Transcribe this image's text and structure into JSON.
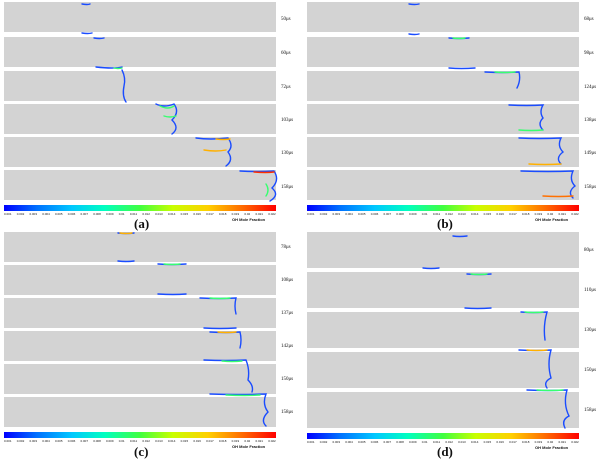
{
  "colorbar": {
    "title": "OH Mole Fraction",
    "ticks": [
      "0.001",
      "0.002",
      "0.003",
      "0.004",
      "0.005",
      "0.006",
      "0.007",
      "0.008",
      "0.009",
      "0.01",
      "0.011",
      "0.012",
      "0.013",
      "0.014",
      "0.015",
      "0.016",
      "0.017",
      "0.018",
      "0.019",
      "0.02",
      "0.021",
      "0.022"
    ]
  },
  "quadrants": [
    {
      "caption": "(a)",
      "times": [
        "50μs",
        "60μs",
        "72μs",
        "103μs",
        "130μs",
        "158μs"
      ]
    },
    {
      "caption": "(b)",
      "times": [
        "68μs",
        "98μs",
        "124μs",
        "138μs",
        "149μs",
        "158μs"
      ]
    },
    {
      "caption": "(c)",
      "times": [
        "78μs",
        "108μs",
        "137μs",
        "142μs",
        "150μs",
        "158μs"
      ]
    },
    {
      "caption": "(d)",
      "times": [
        "80μs",
        "110μs",
        "130μs",
        "150μs",
        "158μs"
      ]
    }
  ]
}
